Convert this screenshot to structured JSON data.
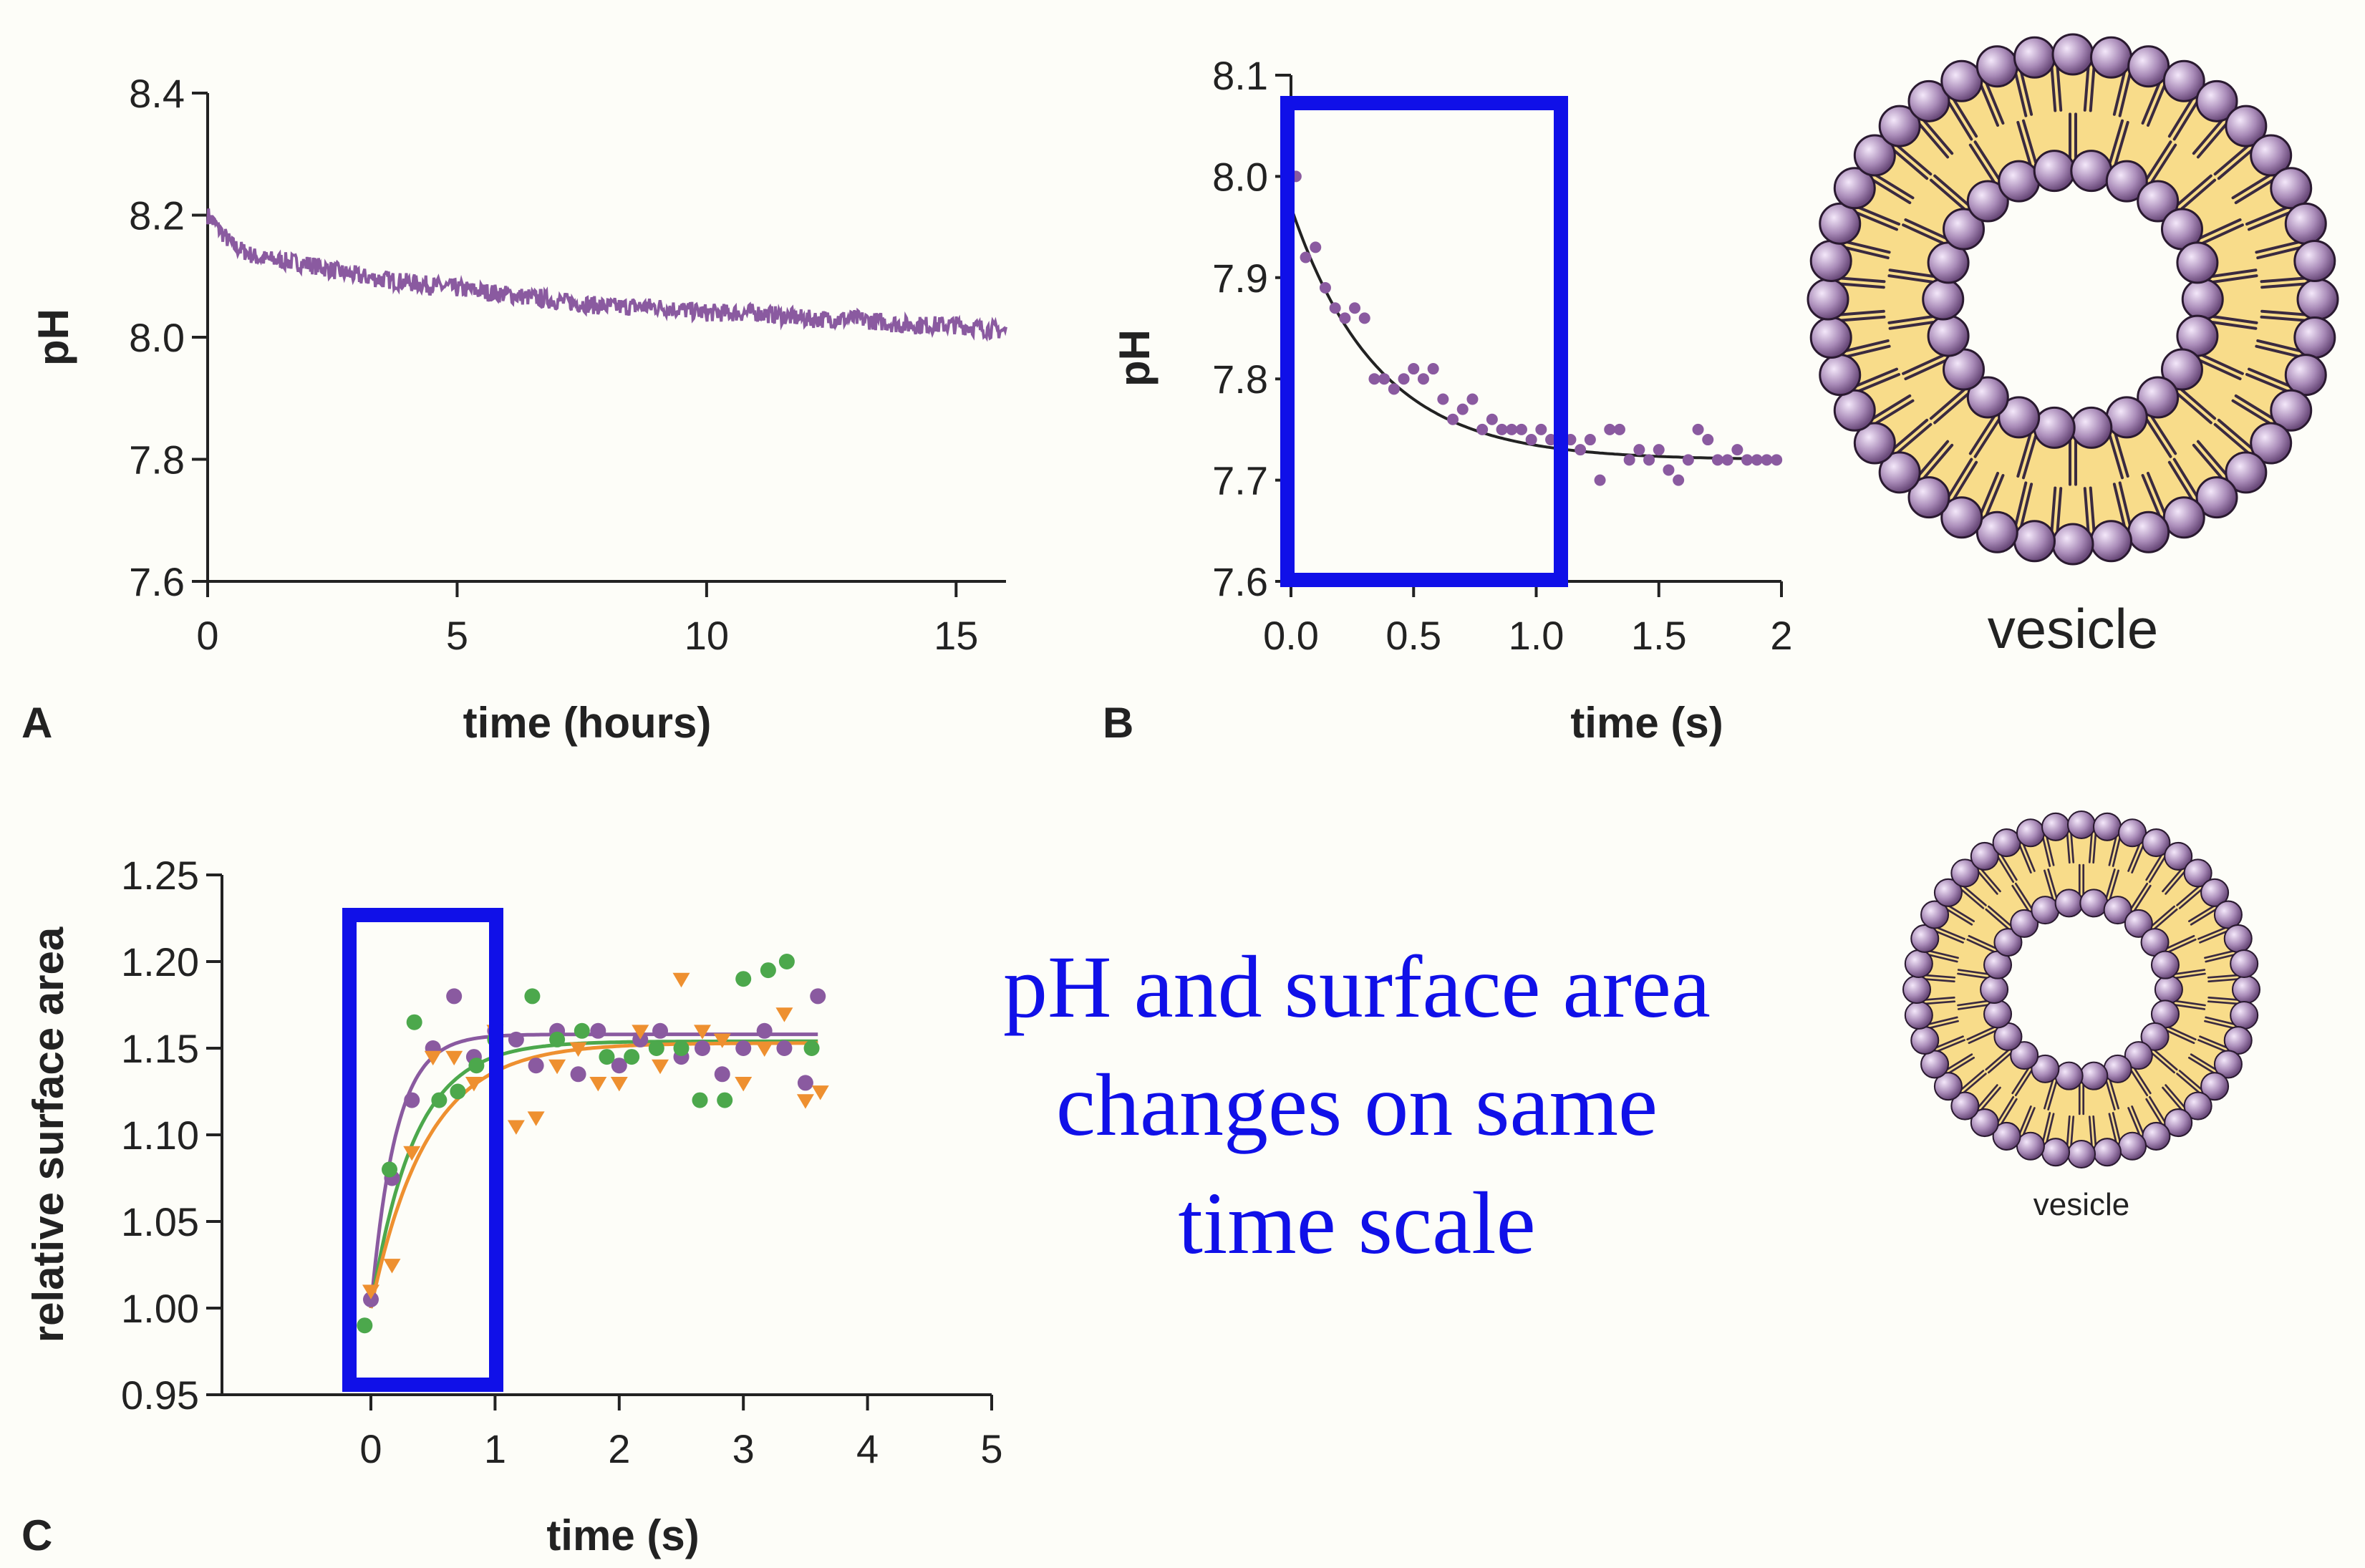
{
  "panels": {
    "A": {
      "letter": "A"
    },
    "B": {
      "letter": "B"
    },
    "C": {
      "letter": "C"
    }
  },
  "caption": {
    "lines": [
      "pH and surface area",
      "changes on same",
      "time scale"
    ],
    "color": "#1010e8"
  },
  "vesicle": {
    "label_large": "vesicle",
    "label_small": "vesicle",
    "head_color": "#a98bb8",
    "core_color": "#f8dc8a",
    "tail_color": "#3a2a40"
  },
  "highlight_color": "#1010e8",
  "chart_data": [
    {
      "panel": "A",
      "type": "line",
      "xlabel": "time (hours)",
      "ylabel": "pH",
      "xlim": [
        0,
        16
      ],
      "ylim": [
        7.6,
        8.4
      ],
      "xticks": [
        "0",
        "5",
        "10",
        "15"
      ],
      "yticks": [
        "7.6",
        "7.8",
        "8.0",
        "8.2",
        "8.4"
      ],
      "color": "#8a5aa0",
      "x": [
        0,
        0.5,
        1,
        2,
        3,
        4,
        5,
        6,
        7,
        8,
        9,
        10,
        11,
        12,
        13,
        14,
        15,
        16
      ],
      "y": [
        8.2,
        8.15,
        8.13,
        8.12,
        8.1,
        8.09,
        8.08,
        8.07,
        8.06,
        8.05,
        8.05,
        8.04,
        8.04,
        8.03,
        8.03,
        8.02,
        8.02,
        8.01
      ],
      "noise_amplitude": 0.015
    },
    {
      "panel": "B",
      "type": "scatter",
      "xlabel": "time (s)",
      "ylabel": "pH",
      "xlim": [
        0,
        2
      ],
      "ylim": [
        7.6,
        8.1
      ],
      "xticks": [
        "0.0",
        "0.5",
        "1.0",
        "1.5",
        "2"
      ],
      "yticks": [
        "7.6",
        "7.7",
        "7.8",
        "7.9",
        "8.0",
        "8.1"
      ],
      "point_color": "#8a5aa0",
      "fit_color": "#222222",
      "x": [
        0.02,
        0.06,
        0.1,
        0.14,
        0.18,
        0.22,
        0.26,
        0.3,
        0.34,
        0.38,
        0.42,
        0.46,
        0.5,
        0.54,
        0.58,
        0.62,
        0.66,
        0.7,
        0.74,
        0.78,
        0.82,
        0.86,
        0.9,
        0.94,
        0.98,
        1.02,
        1.06,
        1.1,
        1.14,
        1.18,
        1.22,
        1.26,
        1.3,
        1.34,
        1.38,
        1.42,
        1.46,
        1.5,
        1.54,
        1.58,
        1.62,
        1.66,
        1.7,
        1.74,
        1.78,
        1.82,
        1.86,
        1.9,
        1.94,
        1.98
      ],
      "y": [
        8.0,
        7.92,
        7.93,
        7.89,
        7.87,
        7.86,
        7.87,
        7.86,
        7.8,
        7.8,
        7.79,
        7.8,
        7.81,
        7.8,
        7.81,
        7.78,
        7.76,
        7.77,
        7.78,
        7.75,
        7.76,
        7.75,
        7.75,
        7.75,
        7.74,
        7.75,
        7.74,
        7.73,
        7.74,
        7.73,
        7.74,
        7.7,
        7.75,
        7.75,
        7.72,
        7.73,
        7.72,
        7.73,
        7.71,
        7.7,
        7.72,
        7.75,
        7.74,
        7.72,
        7.72,
        7.73,
        7.72,
        7.72,
        7.72,
        7.72
      ],
      "fit": {
        "y0": 7.97,
        "yinf": 7.72,
        "tau": 0.35
      }
    },
    {
      "panel": "C",
      "type": "scatter",
      "xlabel": "time (s)",
      "ylabel": "relative surface area",
      "xlim": [
        -1.2,
        5
      ],
      "ylim": [
        0.95,
        1.25
      ],
      "xticks": [
        "0",
        "1",
        "2",
        "3",
        "4",
        "5"
      ],
      "yticks": [
        "0.95",
        "1.00",
        "1.05",
        "1.10",
        "1.15",
        "1.20",
        "1.25"
      ],
      "series": [
        {
          "color": "#8a5aa0",
          "marker": "circle",
          "x": [
            0,
            0.17,
            0.33,
            0.5,
            0.67,
            0.83,
            1.0,
            1.17,
            1.33,
            1.5,
            1.67,
            1.83,
            2.0,
            2.17,
            2.33,
            2.5,
            2.67,
            2.83,
            3.0,
            3.17,
            3.33,
            3.5,
            3.6
          ],
          "y": [
            1.005,
            1.075,
            1.12,
            1.15,
            1.18,
            1.145,
            1.16,
            1.155,
            1.14,
            1.16,
            1.135,
            1.16,
            1.14,
            1.155,
            1.16,
            1.145,
            1.15,
            1.135,
            1.15,
            1.16,
            1.15,
            1.13,
            1.18
          ],
          "fit": {
            "y0": 1.0,
            "yinf": 1.158,
            "tau": 0.2
          }
        },
        {
          "color": "#4ca84c",
          "marker": "circle",
          "x": [
            -0.05,
            0.15,
            0.35,
            0.55,
            0.7,
            0.85,
            1.0,
            1.3,
            1.5,
            1.7,
            1.9,
            2.1,
            2.3,
            2.5,
            2.65,
            2.85,
            3.0,
            3.2,
            3.35,
            3.55
          ],
          "y": [
            0.99,
            1.08,
            1.165,
            1.12,
            1.125,
            1.14,
            1.155,
            1.18,
            1.155,
            1.16,
            1.145,
            1.145,
            1.15,
            1.15,
            1.12,
            1.12,
            1.19,
            1.195,
            1.2,
            1.15
          ],
          "fit": {
            "y0": 1.0,
            "yinf": 1.154,
            "tau": 0.35
          }
        },
        {
          "color": "#ee9030",
          "marker": "triangle",
          "x": [
            0,
            0.17,
            0.33,
            0.5,
            0.67,
            0.83,
            1.0,
            1.17,
            1.33,
            1.5,
            1.67,
            1.83,
            2.0,
            2.17,
            2.33,
            2.5,
            2.67,
            2.83,
            3.0,
            3.17,
            3.33,
            3.5,
            3.62
          ],
          "y": [
            1.01,
            1.025,
            1.09,
            1.145,
            1.145,
            1.13,
            1.16,
            1.105,
            1.11,
            1.14,
            1.15,
            1.13,
            1.13,
            1.16,
            1.14,
            1.19,
            1.16,
            1.155,
            1.13,
            1.15,
            1.17,
            1.12,
            1.125
          ],
          "fit": {
            "y0": 1.0,
            "yinf": 1.153,
            "tau": 0.45
          }
        }
      ]
    }
  ]
}
